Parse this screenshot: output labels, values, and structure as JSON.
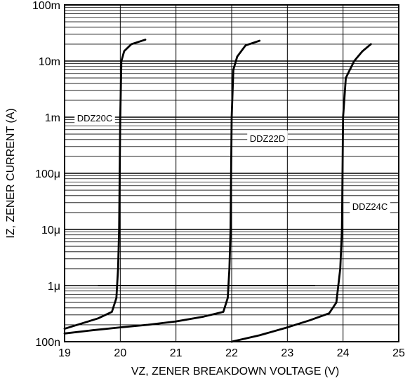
{
  "chart_data": {
    "type": "line",
    "xlabel": "VZ, ZENER BREAKDOWN VOLTAGE (V)",
    "ylabel": "IZ, ZENER CURRENT (A)",
    "xlim": [
      19,
      25
    ],
    "ylim": [
      1e-07,
      0.1
    ],
    "yscale": "log",
    "grid": true,
    "x_ticks": [
      19,
      20,
      21,
      22,
      23,
      24,
      25
    ],
    "x_tick_labels": [
      "19",
      "20",
      "21",
      "22",
      "23",
      "24",
      "25"
    ],
    "y_ticks": [
      1e-07,
      1e-06,
      1e-05,
      0.0001,
      0.001,
      0.01,
      0.1
    ],
    "y_tick_labels": [
      "100n",
      "1μ",
      "10μ",
      "100μ",
      "1m",
      "10m",
      "100m"
    ],
    "series": [
      {
        "name": "DDZ20C",
        "points": [
          [
            19.0,
            1.7e-07
          ],
          [
            19.3,
            2.1e-07
          ],
          [
            19.6,
            2.6e-07
          ],
          [
            19.85,
            3.4e-07
          ],
          [
            19.93,
            6e-07
          ],
          [
            19.96,
            2e-06
          ],
          [
            19.98,
            1e-05
          ],
          [
            19.99,
            0.0001
          ],
          [
            20.0,
            0.001
          ],
          [
            20.02,
            0.01
          ],
          [
            20.07,
            0.015
          ],
          [
            20.2,
            0.02
          ],
          [
            20.45,
            0.024
          ]
        ]
      },
      {
        "name": "DDZ22D",
        "points": [
          [
            19.0,
            1.4e-07
          ],
          [
            19.5,
            1.6e-07
          ],
          [
            20.0,
            1.8e-07
          ],
          [
            20.5,
            2e-07
          ],
          [
            21.0,
            2.3e-07
          ],
          [
            21.5,
            2.8e-07
          ],
          [
            21.85,
            3.4e-07
          ],
          [
            21.93,
            6e-07
          ],
          [
            21.96,
            2e-06
          ],
          [
            21.98,
            1e-05
          ],
          [
            21.99,
            0.0001
          ],
          [
            22.0,
            0.001
          ],
          [
            22.03,
            0.007
          ],
          [
            22.1,
            0.012
          ],
          [
            22.25,
            0.019
          ],
          [
            22.5,
            0.023
          ]
        ]
      },
      {
        "name": "DDZ24C",
        "points": [
          [
            22.0,
            1e-07
          ],
          [
            22.5,
            1.3e-07
          ],
          [
            23.0,
            1.8e-07
          ],
          [
            23.4,
            2.4e-07
          ],
          [
            23.75,
            3.2e-07
          ],
          [
            23.88,
            5e-07
          ],
          [
            23.95,
            2e-06
          ],
          [
            23.98,
            1e-05
          ],
          [
            23.99,
            0.0001
          ],
          [
            24.0,
            0.001
          ],
          [
            24.05,
            0.005
          ],
          [
            24.2,
            0.01
          ],
          [
            24.35,
            0.015
          ],
          [
            24.5,
            0.02
          ]
        ]
      }
    ],
    "annotations": [
      "DDZ20C",
      "DDZ22D",
      "DDZ24C"
    ],
    "ref_line": {
      "y": 1e-06,
      "x_from": 19.6,
      "x_to": 23.5
    }
  }
}
